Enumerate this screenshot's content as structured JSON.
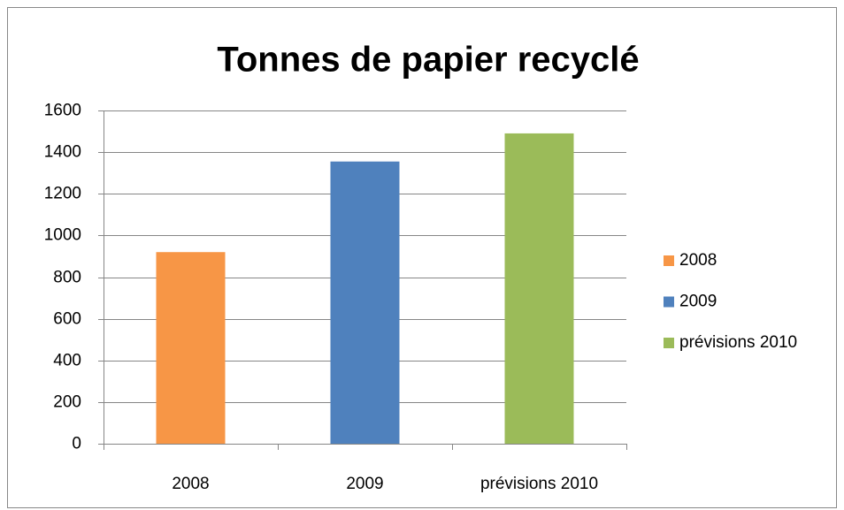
{
  "chart_data": {
    "type": "bar",
    "title": "Tonnes de papier recyclé",
    "categories": [
      "2008",
      "2009",
      "prévisions 2010"
    ],
    "values": [
      920,
      1355,
      1490
    ],
    "colors": [
      "#f79646",
      "#4f81bd",
      "#9bbb59"
    ],
    "ylim": [
      0,
      1600
    ],
    "yticks": [
      0,
      200,
      400,
      600,
      800,
      1000,
      1200,
      1400,
      1600
    ],
    "grid": true,
    "legend": "right"
  }
}
